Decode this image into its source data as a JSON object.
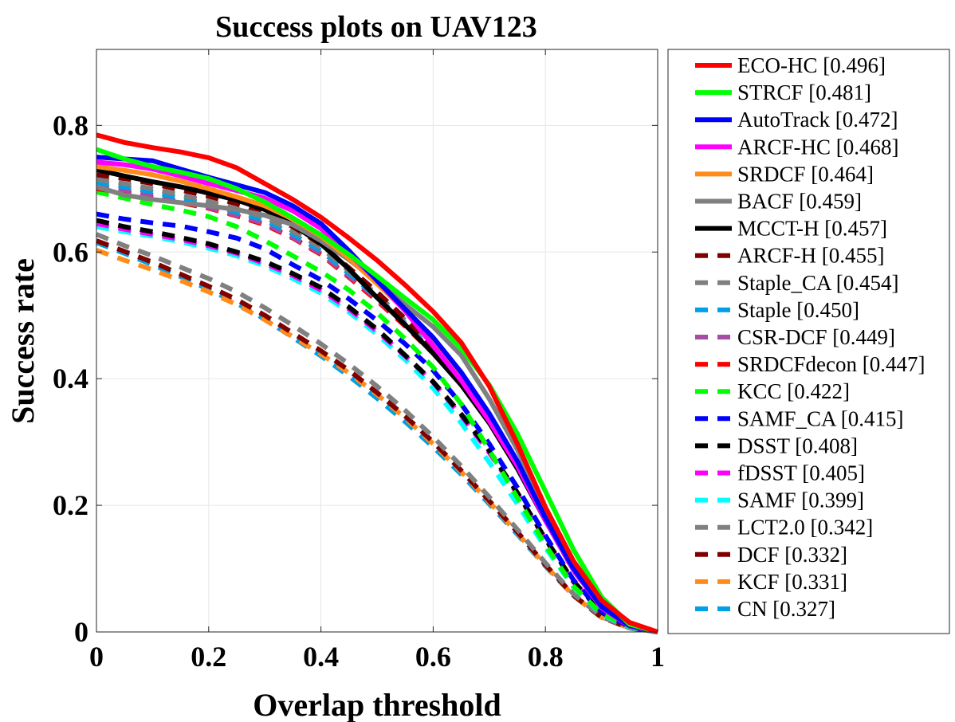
{
  "chart_data": {
    "type": "line",
    "title": "Success plots on UAV123",
    "xlabel": "Overlap threshold",
    "ylabel": "Success rate",
    "xlim": [
      0,
      1
    ],
    "ylim": [
      0,
      0.92
    ],
    "xticks": [
      "0",
      "0.2",
      "0.4",
      "0.6",
      "0.8",
      "1"
    ],
    "yticks": [
      "0",
      "0.2",
      "0.4",
      "0.6",
      "0.8"
    ],
    "grid": true,
    "legend_position": "outside-right",
    "x": [
      0,
      0.05,
      0.1,
      0.15,
      0.2,
      0.25,
      0.3,
      0.35,
      0.4,
      0.45,
      0.5,
      0.55,
      0.6,
      0.65,
      0.7,
      0.75,
      0.8,
      0.85,
      0.9,
      0.95,
      1.0
    ],
    "series": [
      {
        "name": "ECO-HC [0.496]",
        "color": "#ff0000",
        "dashed": false,
        "values": [
          0.785,
          0.773,
          0.765,
          0.758,
          0.749,
          0.733,
          0.708,
          0.683,
          0.655,
          0.622,
          0.587,
          0.548,
          0.506,
          0.457,
          0.388,
          0.297,
          0.197,
          0.112,
          0.05,
          0.015,
          0.0
        ]
      },
      {
        "name": "STRCF [0.481]",
        "color": "#00ff00",
        "dashed": false,
        "values": [
          0.762,
          0.747,
          0.735,
          0.726,
          0.716,
          0.7,
          0.679,
          0.654,
          0.627,
          0.596,
          0.562,
          0.527,
          0.493,
          0.448,
          0.39,
          0.313,
          0.222,
          0.13,
          0.055,
          0.012,
          0.0
        ]
      },
      {
        "name": "AutoTrack [0.472]",
        "color": "#0000ff",
        "dashed": false,
        "values": [
          0.75,
          0.747,
          0.744,
          0.731,
          0.718,
          0.706,
          0.694,
          0.673,
          0.645,
          0.602,
          0.555,
          0.51,
          0.465,
          0.41,
          0.345,
          0.27,
          0.18,
          0.1,
          0.04,
          0.01,
          0.0
        ]
      },
      {
        "name": "ARCF-HC [0.468]",
        "color": "#ff00ff",
        "dashed": false,
        "values": [
          0.742,
          0.738,
          0.731,
          0.72,
          0.708,
          0.697,
          0.685,
          0.665,
          0.637,
          0.597,
          0.555,
          0.507,
          0.452,
          0.397,
          0.333,
          0.262,
          0.176,
          0.098,
          0.038,
          0.009,
          0.0
        ]
      },
      {
        "name": "SRDCF [0.464]",
        "color": "#ff8c1a",
        "dashed": false,
        "values": [
          0.735,
          0.729,
          0.722,
          0.712,
          0.7,
          0.687,
          0.673,
          0.652,
          0.625,
          0.59,
          0.55,
          0.508,
          0.462,
          0.407,
          0.34,
          0.265,
          0.18,
          0.1,
          0.04,
          0.01,
          0.0
        ]
      },
      {
        "name": "BACF [0.459]",
        "color": "#808080",
        "dashed": false,
        "values": [
          0.703,
          0.69,
          0.683,
          0.678,
          0.673,
          0.667,
          0.658,
          0.643,
          0.618,
          0.588,
          0.553,
          0.517,
          0.482,
          0.437,
          0.368,
          0.288,
          0.195,
          0.108,
          0.043,
          0.01,
          0.0
        ]
      },
      {
        "name": "MCCT-H [0.457]",
        "color": "#000000",
        "dashed": false,
        "values": [
          0.73,
          0.72,
          0.711,
          0.703,
          0.693,
          0.682,
          0.667,
          0.643,
          0.613,
          0.573,
          0.528,
          0.485,
          0.44,
          0.39,
          0.33,
          0.258,
          0.176,
          0.098,
          0.04,
          0.01,
          0.0
        ]
      },
      {
        "name": "ARCF-H [0.455]",
        "color": "#800000",
        "dashed": true,
        "values": [
          0.722,
          0.716,
          0.708,
          0.698,
          0.688,
          0.676,
          0.662,
          0.64,
          0.612,
          0.575,
          0.537,
          0.495,
          0.451,
          0.4,
          0.338,
          0.266,
          0.182,
          0.1,
          0.04,
          0.01,
          0.0
        ]
      },
      {
        "name": "Staple_CA [0.454]",
        "color": "#808080",
        "dashed": true,
        "values": [
          0.715,
          0.708,
          0.7,
          0.69,
          0.68,
          0.668,
          0.655,
          0.633,
          0.607,
          0.57,
          0.533,
          0.492,
          0.448,
          0.398,
          0.336,
          0.264,
          0.18,
          0.099,
          0.04,
          0.01,
          0.0
        ]
      },
      {
        "name": "Staple [0.450]",
        "color": "#00a0e6",
        "dashed": true,
        "values": [
          0.71,
          0.703,
          0.695,
          0.685,
          0.675,
          0.663,
          0.65,
          0.628,
          0.602,
          0.566,
          0.529,
          0.488,
          0.444,
          0.394,
          0.333,
          0.261,
          0.178,
          0.098,
          0.039,
          0.01,
          0.0
        ]
      },
      {
        "name": "CSR-DCF [0.449]",
        "color": "#a64ca6",
        "dashed": true,
        "values": [
          0.705,
          0.698,
          0.69,
          0.68,
          0.67,
          0.658,
          0.645,
          0.623,
          0.598,
          0.562,
          0.526,
          0.486,
          0.443,
          0.394,
          0.333,
          0.261,
          0.178,
          0.098,
          0.039,
          0.01,
          0.0
        ]
      },
      {
        "name": "SRDCFdecon [0.447]",
        "color": "#ff0000",
        "dashed": true,
        "values": [
          0.7,
          0.694,
          0.686,
          0.678,
          0.669,
          0.657,
          0.643,
          0.622,
          0.596,
          0.56,
          0.523,
          0.483,
          0.44,
          0.391,
          0.331,
          0.259,
          0.177,
          0.097,
          0.039,
          0.01,
          0.0
        ]
      },
      {
        "name": "KCC [0.422]",
        "color": "#00ff00",
        "dashed": true,
        "values": [
          0.695,
          0.685,
          0.675,
          0.666,
          0.656,
          0.64,
          0.618,
          0.594,
          0.569,
          0.54,
          0.504,
          0.463,
          0.418,
          0.36,
          0.287,
          0.212,
          0.137,
          0.072,
          0.029,
          0.008,
          0.0
        ]
      },
      {
        "name": "SAMF_CA [0.415]",
        "color": "#0000ff",
        "dashed": true,
        "values": [
          0.66,
          0.652,
          0.646,
          0.641,
          0.632,
          0.622,
          0.605,
          0.58,
          0.556,
          0.526,
          0.492,
          0.455,
          0.413,
          0.36,
          0.297,
          0.228,
          0.152,
          0.082,
          0.032,
          0.008,
          0.0
        ]
      },
      {
        "name": "DSST [0.408]",
        "color": "#000000",
        "dashed": true,
        "values": [
          0.65,
          0.64,
          0.632,
          0.623,
          0.613,
          0.6,
          0.585,
          0.566,
          0.544,
          0.513,
          0.478,
          0.437,
          0.395,
          0.344,
          0.286,
          0.22,
          0.147,
          0.08,
          0.031,
          0.008,
          0.0
        ]
      },
      {
        "name": "fDSST [0.405]",
        "color": "#ff00ff",
        "dashed": true,
        "values": [
          0.645,
          0.636,
          0.628,
          0.62,
          0.61,
          0.598,
          0.582,
          0.563,
          0.54,
          0.51,
          0.475,
          0.436,
          0.394,
          0.342,
          0.283,
          0.218,
          0.146,
          0.079,
          0.031,
          0.008,
          0.0
        ]
      },
      {
        "name": "SAMF [0.399]",
        "color": "#00ffff",
        "dashed": true,
        "values": [
          0.64,
          0.632,
          0.625,
          0.616,
          0.606,
          0.594,
          0.578,
          0.558,
          0.535,
          0.505,
          0.47,
          0.43,
          0.385,
          0.33,
          0.268,
          0.202,
          0.133,
          0.071,
          0.028,
          0.007,
          0.0
        ]
      },
      {
        "name": "LCT2.0 [0.342]",
        "color": "#808080",
        "dashed": true,
        "values": [
          0.628,
          0.61,
          0.594,
          0.576,
          0.558,
          0.537,
          0.512,
          0.484,
          0.455,
          0.423,
          0.388,
          0.35,
          0.308,
          0.262,
          0.213,
          0.162,
          0.109,
          0.06,
          0.024,
          0.006,
          0.0
        ]
      },
      {
        "name": "DCF [0.332]",
        "color": "#800000",
        "dashed": true,
        "values": [
          0.618,
          0.601,
          0.584,
          0.565,
          0.546,
          0.525,
          0.5,
          0.472,
          0.444,
          0.413,
          0.378,
          0.341,
          0.3,
          0.255,
          0.207,
          0.158,
          0.106,
          0.058,
          0.023,
          0.006,
          0.0
        ]
      },
      {
        "name": "KCF [0.331]",
        "color": "#ff8c1a",
        "dashed": true,
        "values": [
          0.603,
          0.587,
          0.572,
          0.555,
          0.537,
          0.517,
          0.493,
          0.466,
          0.439,
          0.409,
          0.375,
          0.338,
          0.297,
          0.253,
          0.205,
          0.156,
          0.105,
          0.057,
          0.023,
          0.006,
          0.0
        ]
      },
      {
        "name": "CN [0.327]",
        "color": "#00a0e6",
        "dashed": true,
        "values": [
          0.615,
          0.598,
          0.58,
          0.561,
          0.541,
          0.519,
          0.494,
          0.465,
          0.436,
          0.404,
          0.369,
          0.332,
          0.292,
          0.249,
          0.202,
          0.154,
          0.104,
          0.057,
          0.023,
          0.006,
          0.0
        ]
      }
    ]
  }
}
